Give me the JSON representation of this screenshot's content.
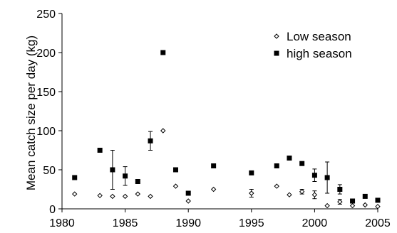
{
  "chart_data": {
    "type": "scatter",
    "title": "",
    "xlabel": "",
    "ylabel": "Mean catch size per day (kg)",
    "xlim": [
      1980,
      2005
    ],
    "ylim": [
      0,
      250
    ],
    "x_ticks": [
      1980,
      1985,
      1990,
      1995,
      2000,
      2005
    ],
    "y_ticks": [
      0,
      50,
      100,
      150,
      200,
      250
    ],
    "grid": false,
    "legend_position": "top-right",
    "series": [
      {
        "name": "Low season",
        "marker": "open-diamond",
        "color": "#000000",
        "points": [
          {
            "x": 1981,
            "y": 19
          },
          {
            "x": 1983,
            "y": 17
          },
          {
            "x": 1984,
            "y": 16
          },
          {
            "x": 1985,
            "y": 16
          },
          {
            "x": 1986,
            "y": 19
          },
          {
            "x": 1987,
            "y": 16
          },
          {
            "x": 1988,
            "y": 100
          },
          {
            "x": 1989,
            "y": 29
          },
          {
            "x": 1990,
            "y": 10
          },
          {
            "x": 1992,
            "y": 25
          },
          {
            "x": 1995,
            "y": 20,
            "err": 5
          },
          {
            "x": 1997,
            "y": 29
          },
          {
            "x": 1998,
            "y": 18
          },
          {
            "x": 1999,
            "y": 22,
            "err": 3
          },
          {
            "x": 2000,
            "y": 18,
            "err": 5
          },
          {
            "x": 2001,
            "y": 4
          },
          {
            "x": 2002,
            "y": 9,
            "err": 3
          },
          {
            "x": 2003,
            "y": 4
          },
          {
            "x": 2004,
            "y": 5
          },
          {
            "x": 2005,
            "y": 3
          }
        ]
      },
      {
        "name": "high season",
        "marker": "filled-square",
        "color": "#000000",
        "points": [
          {
            "x": 1981,
            "y": 40
          },
          {
            "x": 1983,
            "y": 75
          },
          {
            "x": 1984,
            "y": 50,
            "err": 25
          },
          {
            "x": 1985,
            "y": 42,
            "err": 12
          },
          {
            "x": 1986,
            "y": 35
          },
          {
            "x": 1987,
            "y": 87,
            "err": 12
          },
          {
            "x": 1988,
            "y": 200
          },
          {
            "x": 1989,
            "y": 50
          },
          {
            "x": 1990,
            "y": 20
          },
          {
            "x": 1992,
            "y": 55
          },
          {
            "x": 1995,
            "y": 46
          },
          {
            "x": 1997,
            "y": 55
          },
          {
            "x": 1998,
            "y": 65
          },
          {
            "x": 1999,
            "y": 58
          },
          {
            "x": 2000,
            "y": 43,
            "err": 8
          },
          {
            "x": 2001,
            "y": 40,
            "err": 20
          },
          {
            "x": 2002,
            "y": 25,
            "err": 6
          },
          {
            "x": 2003,
            "y": 10
          },
          {
            "x": 2004,
            "y": 16
          },
          {
            "x": 2005,
            "y": 11
          }
        ]
      }
    ]
  }
}
